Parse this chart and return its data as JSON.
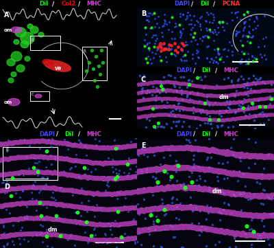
{
  "title_A": [
    "DiI",
    " / ",
    "Col2",
    " / ",
    "MHC"
  ],
  "title_A_colors": [
    "#00ff00",
    "#ffffff",
    "#ff0000",
    "#ffffff",
    "#cc44cc"
  ],
  "title_B": [
    "DAPI",
    " / ",
    "DiI",
    " / ",
    "PCNA"
  ],
  "title_B_colors": [
    "#4444ff",
    "#ffffff",
    "#00ff00",
    "#ffffff",
    "#ff3333"
  ],
  "title_C": [
    "DAPI",
    " / ",
    "DiI",
    " / ",
    "MHC"
  ],
  "title_C_colors": [
    "#4444ff",
    "#ffffff",
    "#00ff00",
    "#ffffff",
    "#cc44cc"
  ],
  "title_D": [
    "DAPI",
    " / ",
    "DiI",
    " / ",
    "MHC"
  ],
  "title_D_colors": [
    "#4444ff",
    "#ffffff",
    "#00ff00",
    "#ffffff",
    "#cc44cc"
  ],
  "title_E": [
    "DAPI",
    " / ",
    "DiI",
    " / ",
    "MHC"
  ],
  "title_E_colors": [
    "#4444ff",
    "#ffffff",
    "#00ff00",
    "#ffffff",
    "#cc44cc"
  ],
  "bg_color": "#000000",
  "panel_A_bg": "#000000",
  "panel_B_bg": "#050510",
  "panel_C_bg": "#050510",
  "panel_D_bg": "#050510",
  "panel_E_bg": "#050510"
}
